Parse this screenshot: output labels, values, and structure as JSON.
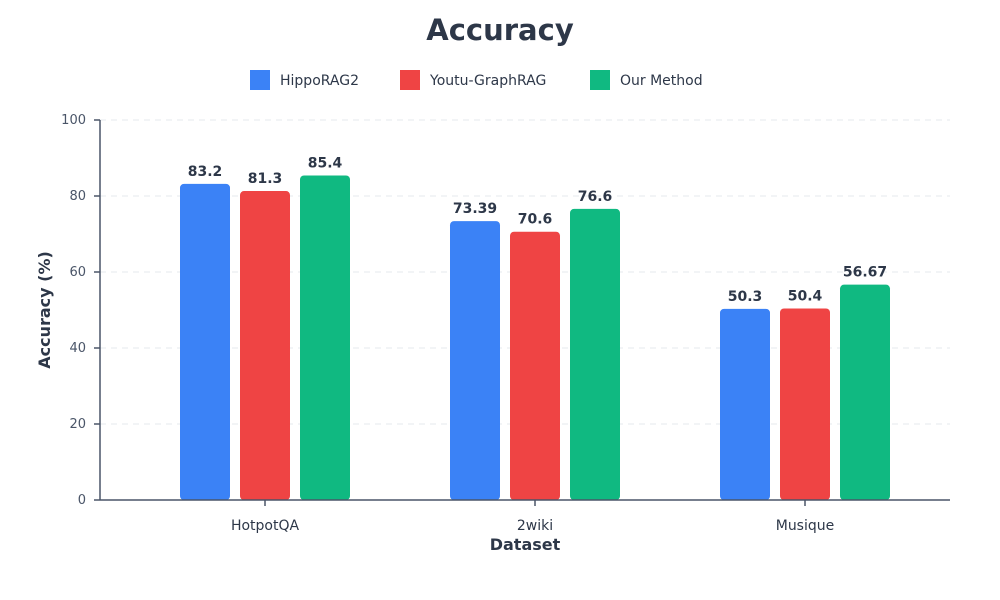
{
  "chart_data": {
    "type": "bar",
    "title": "Accuracy",
    "xlabel": "Dataset",
    "ylabel": "Accuracy (%)",
    "ylim": [
      0,
      100
    ],
    "yticks": [
      0,
      20,
      40,
      60,
      80,
      100
    ],
    "grid": true,
    "legend_position": "top-center",
    "categories": [
      "HotpotQA",
      "2wiki",
      "Musique"
    ],
    "series": [
      {
        "name": "HippoRAG2",
        "color": "#3b82f6",
        "values": [
          83.2,
          73.39,
          50.3
        ]
      },
      {
        "name": "Youtu-GraphRAG",
        "color": "#ef4444",
        "values": [
          81.3,
          70.6,
          50.4
        ]
      },
      {
        "name": "Our Method",
        "color": "#10b981",
        "values": [
          85.4,
          76.6,
          56.67
        ]
      }
    ]
  }
}
